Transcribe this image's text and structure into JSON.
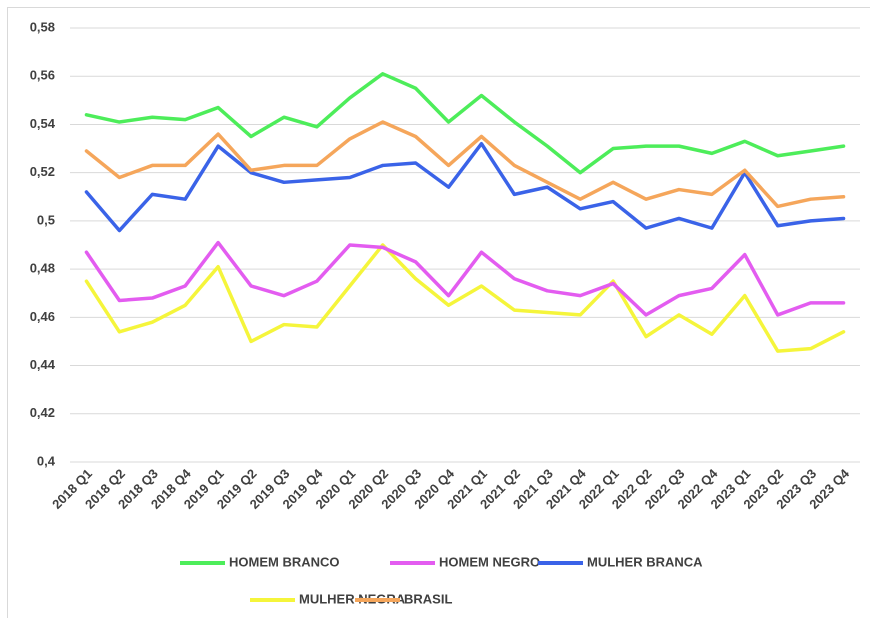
{
  "chart_data": {
    "type": "line",
    "categories": [
      "2018 Q1",
      "2018 Q2",
      "2018 Q3",
      "2018 Q4",
      "2019 Q1",
      "2019 Q2",
      "2019 Q3",
      "2019 Q4",
      "2020 Q1",
      "2020 Q2",
      "2020 Q3",
      "2020 Q4",
      "2021 Q1",
      "2021 Q2",
      "2021 Q3",
      "2021 Q4",
      "2022 Q1",
      "2022 Q2",
      "2022 Q3",
      "2022 Q4",
      "2023 Q1",
      "2023 Q2",
      "2023 Q3",
      "2023 Q4"
    ],
    "series": [
      {
        "name": "HOMEM BRANCO",
        "color": "#4ded5a",
        "values": [
          0.544,
          0.541,
          0.543,
          0.542,
          0.547,
          0.535,
          0.543,
          0.539,
          0.551,
          0.561,
          0.555,
          0.541,
          0.552,
          0.541,
          0.531,
          0.52,
          0.53,
          0.531,
          0.531,
          0.528,
          0.533,
          0.527,
          0.529,
          0.531
        ]
      },
      {
        "name": "HOMEM NEGRO",
        "color": "#e35cf0",
        "values": [
          0.487,
          0.467,
          0.468,
          0.473,
          0.491,
          0.473,
          0.469,
          0.475,
          0.49,
          0.489,
          0.483,
          0.469,
          0.487,
          0.476,
          0.471,
          0.469,
          0.474,
          0.461,
          0.469,
          0.472,
          0.486,
          0.461,
          0.466,
          0.466
        ]
      },
      {
        "name": "MULHER BRANCA",
        "color": "#3a63e8",
        "values": [
          0.512,
          0.496,
          0.511,
          0.509,
          0.531,
          0.52,
          0.516,
          0.517,
          0.518,
          0.523,
          0.524,
          0.514,
          0.532,
          0.511,
          0.514,
          0.505,
          0.508,
          0.497,
          0.501,
          0.497,
          0.52,
          0.498,
          0.5,
          0.501
        ]
      },
      {
        "name": "MULHER NEGRA",
        "color": "#f5f53b",
        "values": [
          0.475,
          0.454,
          0.458,
          0.465,
          0.481,
          0.45,
          0.457,
          0.456,
          0.473,
          0.49,
          0.476,
          0.465,
          0.473,
          0.463,
          0.462,
          0.461,
          0.475,
          0.452,
          0.461,
          0.453,
          0.469,
          0.446,
          0.447,
          0.454
        ]
      },
      {
        "name": "BRASIL",
        "color": "#f5a65b",
        "values": [
          0.529,
          0.518,
          0.523,
          0.523,
          0.536,
          0.521,
          0.523,
          0.523,
          0.534,
          0.541,
          0.535,
          0.523,
          0.535,
          0.523,
          0.516,
          0.509,
          0.516,
          0.509,
          0.513,
          0.511,
          0.521,
          0.506,
          0.509,
          0.51
        ]
      }
    ],
    "ylim": [
      0.4,
      0.58
    ],
    "yticks": [
      {
        "value": 0.4,
        "label": "0,4"
      },
      {
        "value": 0.42,
        "label": "0,42"
      },
      {
        "value": 0.44,
        "label": "0,44"
      },
      {
        "value": 0.46,
        "label": "0,46"
      },
      {
        "value": 0.48,
        "label": "0,48"
      },
      {
        "value": 0.5,
        "label": "0,5"
      },
      {
        "value": 0.52,
        "label": "0,52"
      },
      {
        "value": 0.54,
        "label": "0,54"
      },
      {
        "value": 0.56,
        "label": "0,56"
      },
      {
        "value": 0.58,
        "label": "0,58"
      }
    ],
    "grid": true,
    "legend": "bottom"
  }
}
